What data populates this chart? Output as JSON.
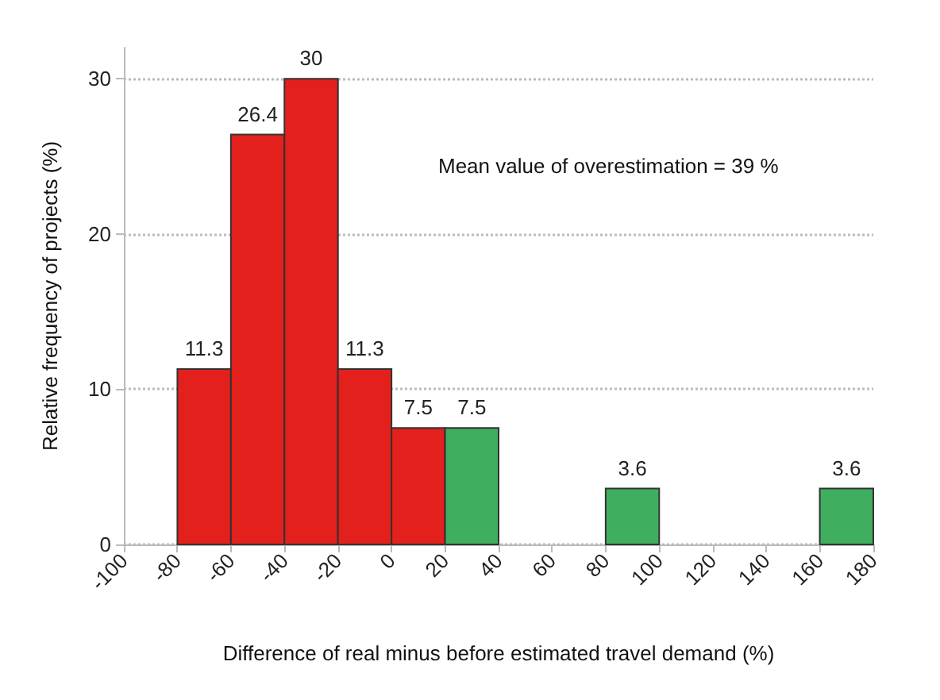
{
  "chart_data": {
    "type": "histogram",
    "xlabel": "Difference of real minus before estimated travel demand (%)",
    "ylabel": "Relative frequency of projects (%)",
    "bins": [
      -80,
      -60,
      -40,
      -20,
      0,
      20,
      40,
      60,
      80,
      100,
      120,
      140,
      160,
      180
    ],
    "values": [
      11.3,
      26.4,
      30,
      11.3,
      7.5,
      7.5,
      0,
      0,
      3.6,
      0,
      0,
      0,
      3.6
    ],
    "colors": [
      "#e3201b",
      "#e3201b",
      "#e3201b",
      "#e3201b",
      "#e3201b",
      "#3fae5f",
      "#3fae5f",
      "#3fae5f",
      "#3fae5f",
      "#3fae5f",
      "#3fae5f",
      "#3fae5f",
      "#3fae5f"
    ],
    "value_labels": [
      "11.3",
      "26.4",
      "30",
      "11.3",
      "7.5",
      "7.5",
      null,
      null,
      "3.6",
      null,
      null,
      null,
      "3.6"
    ],
    "xlim": [
      -100,
      180
    ],
    "xticks": [
      -100,
      -80,
      -60,
      -40,
      -20,
      0,
      20,
      40,
      60,
      80,
      100,
      120,
      140,
      160,
      180
    ],
    "ylim": [
      0,
      32
    ],
    "yticks": [
      0,
      10,
      20,
      30
    ],
    "grid": "y",
    "annotations": [
      "Mean value of overestimation = 39 %"
    ]
  }
}
